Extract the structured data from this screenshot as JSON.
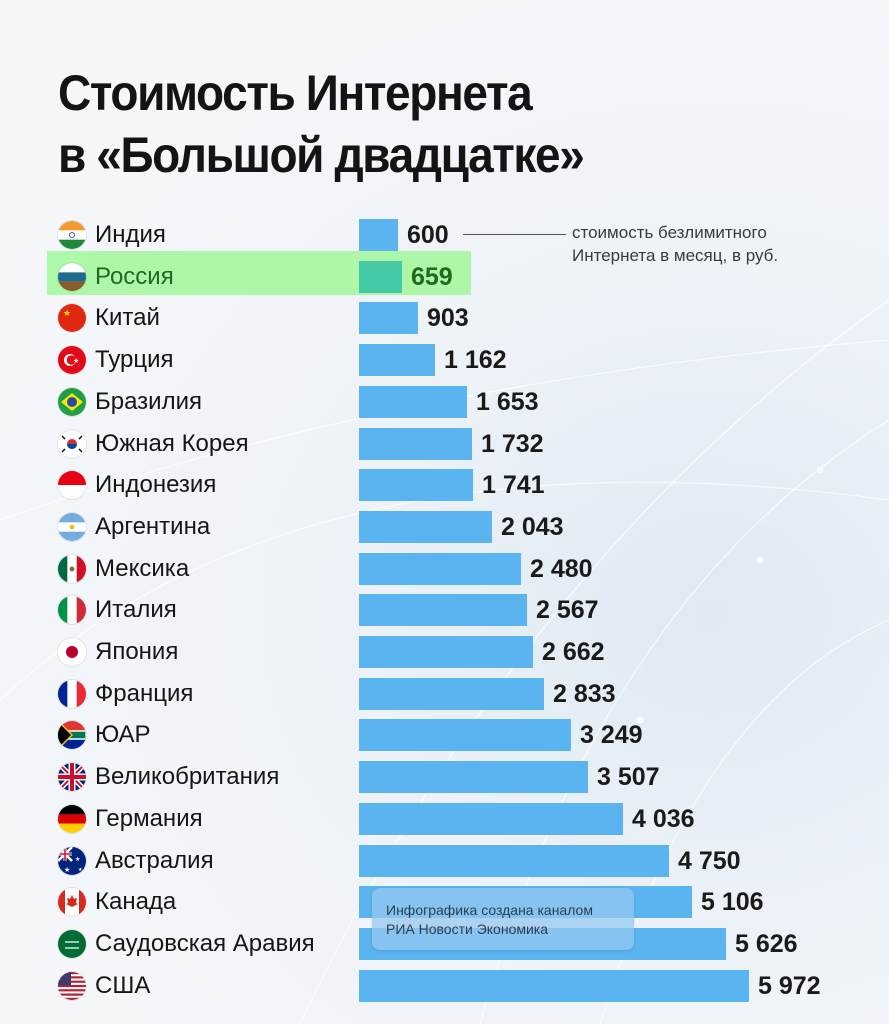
{
  "title": {
    "line1": "Стоимость Интернета",
    "line2": "в «Большой двадцатке»"
  },
  "legend_note": {
    "line1": "стоимость безлимитного",
    "line2": "Интернета в месяц, в руб."
  },
  "credit": {
    "line1": "Инфографика создана каналом",
    "line2": "РИА Новости Экономика"
  },
  "colors": {
    "bar": "#5ab4ef",
    "highlight_bar": "#45c9a6",
    "highlight_row": "#a6f7a0",
    "highlight_text": "#1e6b1e"
  },
  "chart_data": {
    "type": "bar",
    "orientation": "horizontal",
    "title": "Стоимость Интернета в «Большой двадцатке»",
    "xlabel": "стоимость безлимитного Интернета в месяц, в руб.",
    "ylabel": "",
    "grid": false,
    "highlight": "Россия",
    "categories": [
      "Индия",
      "Россия",
      "Китай",
      "Турция",
      "Бразилия",
      "Южная Корея",
      "Индонезия",
      "Аргентина",
      "Мексика",
      "Италия",
      "Япония",
      "Франция",
      "ЮАР",
      "Великобритания",
      "Германия",
      "Австралия",
      "Канада",
      "Саудовская Аравия",
      "США"
    ],
    "values": [
      600,
      659,
      903,
      1162,
      1653,
      1732,
      1741,
      2043,
      2480,
      2567,
      2662,
      2833,
      3249,
      3507,
      4036,
      4750,
      5106,
      5626,
      5972
    ],
    "value_labels": [
      "600",
      "659",
      "903",
      "1 162",
      "1 653",
      "1 732",
      "1 741",
      "2 043",
      "2 480",
      "2 567",
      "2 662",
      "2 833",
      "3 249",
      "3 507",
      "4 036",
      "4 750",
      "5 106",
      "5 626",
      "5 972"
    ],
    "icons": [
      "flag-india",
      "flag-russia",
      "flag-china",
      "flag-turkey",
      "flag-brazil",
      "flag-south-korea",
      "flag-indonesia",
      "flag-argentina",
      "flag-mexico",
      "flag-italy",
      "flag-japan",
      "flag-france",
      "flag-south-africa",
      "flag-uk",
      "flag-germany",
      "flag-australia",
      "flag-canada",
      "flag-saudi-arabia",
      "flag-usa"
    ]
  }
}
